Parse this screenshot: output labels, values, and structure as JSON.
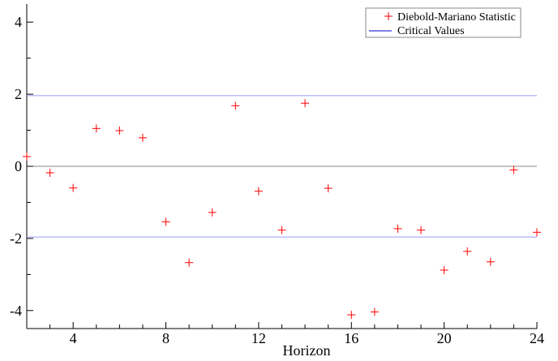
{
  "chart_data": {
    "type": "scatter",
    "x_label": "Horizon",
    "x_ticks": [
      4,
      8,
      12,
      16,
      20,
      24
    ],
    "y_ticks": [
      -4,
      -2,
      0,
      2,
      4
    ],
    "xlim": [
      2,
      24
    ],
    "ylim": [
      -4.5,
      4.5
    ],
    "grid": false,
    "legend_position": "top-right",
    "series": [
      {
        "name": "Diebold-Mariano Statistic",
        "marker": "plus",
        "color": "#ff0000",
        "x": [
          2,
          3,
          4,
          5,
          6,
          7,
          8,
          9,
          10,
          11,
          12,
          13,
          14,
          15,
          16,
          17,
          18,
          19,
          20,
          21,
          22,
          23,
          24
        ],
        "y": [
          0.27,
          -0.18,
          -0.6,
          1.05,
          0.99,
          0.79,
          -1.54,
          -2.67,
          -1.28,
          1.68,
          -0.69,
          -1.77,
          1.75,
          -0.61,
          -4.12,
          -4.04,
          -1.73,
          -1.77,
          -2.88,
          -2.36,
          -2.65,
          -0.1,
          -1.83
        ]
      }
    ],
    "reference_lines": [
      {
        "name": "Critical Values",
        "values": [
          1.96,
          -1.96
        ],
        "color": "#9a9aff"
      },
      {
        "name": "zero",
        "values": [
          0
        ],
        "color": "#888888"
      }
    ]
  }
}
